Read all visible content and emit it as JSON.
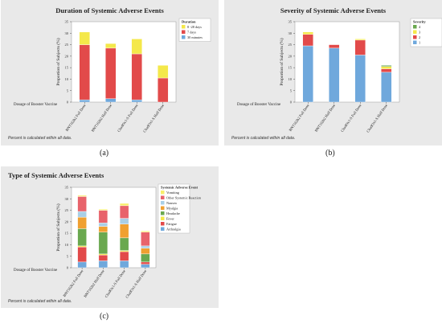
{
  "captions": [
    "(a)",
    "(b)",
    "(c)"
  ],
  "chart_data": [
    {
      "type": "bar",
      "stacked": true,
      "title": "Duration of Systemic Adverse Events",
      "ylabel": "Proportion of Subjects (%)",
      "xlabel": "Dosage of Booster Vaccine",
      "ylim": [
        0,
        35
      ],
      "yticks": [
        0,
        5,
        10,
        15,
        20,
        25,
        30,
        35
      ],
      "categories": [
        "BNT162b2 Full Dose",
        "BNT162b2 Half Dose",
        "ChadOx1-S Full Dose",
        "ChadOx1-S Half Dose"
      ],
      "legend_title": "Duration",
      "legend_position": "top-right",
      "series": [
        {
          "name": "30 minutes",
          "color": "#6fa8dc",
          "values": [
            1.0,
            1.5,
            1.0,
            0.0
          ]
        },
        {
          "name": "7 days",
          "color": "#e24a4a",
          "values": [
            24.0,
            22.0,
            20.0,
            10.5
          ]
        },
        {
          "name": "8 -28 days",
          "color": "#f4e84a",
          "values": [
            5.5,
            2.0,
            6.5,
            5.5
          ]
        }
      ],
      "note": "Percent is calculated within all data."
    },
    {
      "type": "bar",
      "stacked": true,
      "title": "Severity of Systemic Adverse Events",
      "ylabel": "Proportion of Subjects (%)",
      "xlabel": "Dosage of Booster Vaccine",
      "ylim": [
        0,
        35
      ],
      "yticks": [
        0,
        5,
        10,
        15,
        20,
        25,
        30,
        35
      ],
      "categories": [
        "BNT162b2 Full Dose",
        "BNT162b2 Half Dose",
        "ChadOx1-S Full Dose",
        "ChadOx1-S Half Dose"
      ],
      "legend_title": "Severity",
      "legend_position": "top-right",
      "series": [
        {
          "name": "1",
          "color": "#6fa8dc",
          "values": [
            24.5,
            23.5,
            20.5,
            13.0
          ]
        },
        {
          "name": "2",
          "color": "#e24a4a",
          "values": [
            5.0,
            1.5,
            6.5,
            1.5
          ]
        },
        {
          "name": "3",
          "color": "#f4e84a",
          "values": [
            1.0,
            0.0,
            0.5,
            1.0
          ]
        },
        {
          "name": "4",
          "color": "#6aa84f",
          "values": [
            0.0,
            0.0,
            0.0,
            0.5
          ]
        }
      ],
      "note": "Percent is calculated within all data."
    },
    {
      "type": "bar",
      "stacked": true,
      "title": "Type of Systemic Adverse Events",
      "ylabel": "Proportion of Subjects (%)",
      "xlabel": "Dosage of Booster Vaccine",
      "ylim": [
        0,
        35
      ],
      "yticks": [
        0,
        5,
        10,
        15,
        20,
        25,
        30,
        35
      ],
      "categories": [
        "BNT162b2 Full Dose",
        "BNT162b2 Half Dose",
        "ChadOx1-S Full Dose",
        "ChadOx1-S Half Dose"
      ],
      "legend_title": "Systemic Adverse Event",
      "legend_position": "top-right",
      "series": [
        {
          "name": "Arthralgia",
          "color": "#6fa8dc",
          "values": [
            2.5,
            3.0,
            3.0,
            1.5
          ]
        },
        {
          "name": "Fatigue",
          "color": "#e24a4a",
          "values": [
            6.5,
            2.5,
            4.0,
            1.0
          ]
        },
        {
          "name": "Fever",
          "color": "#f4e84a",
          "values": [
            0.5,
            0.5,
            0.5,
            0.0
          ]
        },
        {
          "name": "Headache",
          "color": "#6aa84f",
          "values": [
            7.5,
            9.5,
            5.5,
            3.5
          ]
        },
        {
          "name": "Myalgia",
          "color": "#f0a030",
          "values": [
            5.0,
            2.5,
            6.0,
            2.5
          ]
        },
        {
          "name": "Nausea",
          "color": "#a9cfe6",
          "values": [
            2.5,
            1.5,
            2.5,
            1.0
          ]
        },
        {
          "name": "Other Systemic Reaction",
          "color": "#e8636b",
          "values": [
            6.5,
            5.5,
            5.5,
            6.0
          ]
        },
        {
          "name": "Vomiting",
          "color": "#f8ee6a",
          "values": [
            0.5,
            0.5,
            1.0,
            0.5
          ]
        }
      ],
      "note": "Percent is calculated within all data."
    }
  ]
}
